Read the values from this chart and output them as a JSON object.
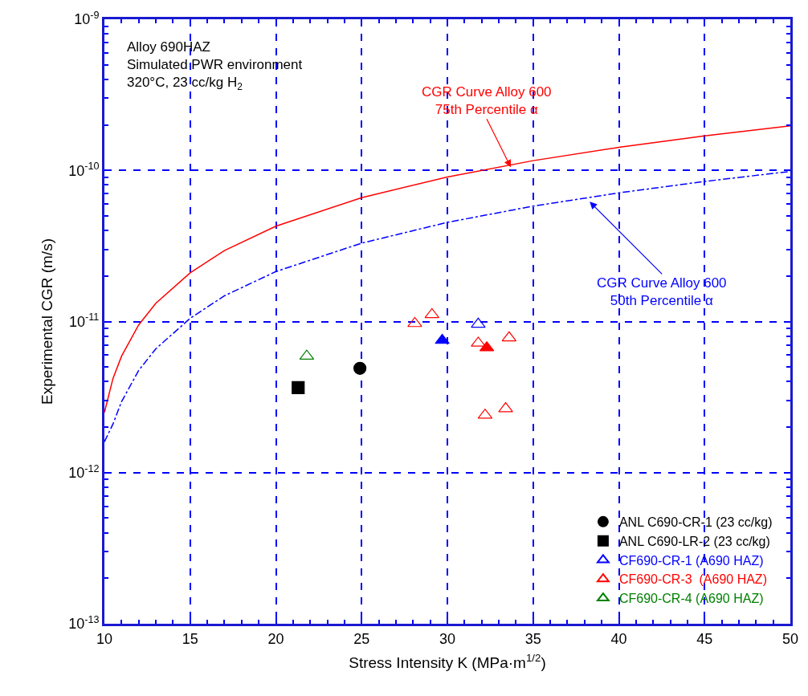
{
  "chart_data": {
    "type": "scatter",
    "xlabel": "Stress Intensity K (MPa·m$^{1/2}$)",
    "ylabel": "Experimental CGR (m/s)",
    "log": "y",
    "xlim": [
      10,
      50
    ],
    "xticks": [
      10,
      15,
      20,
      25,
      30,
      35,
      40,
      45,
      50
    ],
    "ylim": [
      1e-13,
      1e-09
    ],
    "yticks": [
      {
        "value": 1e-13,
        "label": "10$^{-13}$"
      },
      {
        "value": 1e-12,
        "label": "10$^{-12}$"
      },
      {
        "value": 1e-11,
        "label": "10$^{-11}$"
      },
      {
        "value": 1e-10,
        "label": "10$^{-10}$"
      },
      {
        "value": 1e-09,
        "label": "10$^{-9}$"
      }
    ],
    "grid": true,
    "legend": "bottom right",
    "series": [
      {
        "type": "line",
        "color": "#ff0000",
        "line_style": "solid",
        "marker": "none",
        "x": [
          10,
          10.5,
          11,
          12,
          13,
          15,
          17,
          20,
          25,
          30,
          35,
          40,
          45,
          50
        ],
        "values": [
          2.5e-12,
          4.2e-12,
          5.9e-12,
          9.5e-12,
          1.32e-11,
          2.1e-11,
          2.95e-11,
          4.27e-11,
          6.6e-11,
          9.05e-11,
          1.16e-10,
          1.42e-10,
          1.69e-10,
          1.97e-10
        ]
      },
      {
        "type": "line",
        "color": "#0000ff",
        "line_style": "dashdot",
        "marker": "none",
        "x": [
          10,
          10.5,
          11,
          12,
          13,
          15,
          17,
          20,
          25,
          30,
          35,
          40,
          45,
          50
        ],
        "values": [
          1.6e-12,
          2.1e-12,
          2.95e-12,
          4.75e-12,
          6.6e-12,
          1.05e-11,
          1.48e-11,
          2.14e-11,
          3.3e-11,
          4.53e-11,
          5.8e-11,
          7.1e-11,
          8.45e-11,
          9.85e-11
        ]
      },
      {
        "name": "ANL C690-CR-1 (23 cc/kg)",
        "color": "#000000",
        "marker": "circle",
        "x": [
          24.9
        ],
        "values": [
          4.9e-12
        ]
      },
      {
        "name": "ANL C690-LR-2 (23 cc/kg)",
        "color": "#000000",
        "marker": "square",
        "x": [
          21.3
        ],
        "values": [
          3.65e-12
        ]
      },
      {
        "name": "CF690-CR-1 (A690 HAZ)",
        "color": "#0000ff",
        "marker": "triangle-open",
        "x": [
          31.8
        ],
        "values": [
          9.6e-12
        ]
      },
      {
        "name": "CF690-CR-3  (A690 HAZ)",
        "color": "#ff0000",
        "marker": "triangle-open",
        "x": [
          28.1,
          29.1,
          31.8,
          33.6,
          32.2,
          33.4
        ],
        "values": [
          9.7e-12,
          1.11e-11,
          7.2e-12,
          7.8e-12,
          2.4e-12,
          2.65e-12
        ]
      },
      {
        "name": "CF690-CR-4 (A690 HAZ)",
        "color": "#008000",
        "marker": "triangle-open",
        "x": [
          21.8
        ],
        "values": [
          5.9e-12
        ]
      },
      {
        "color": "#0000ff",
        "marker": "triangle",
        "x": [
          29.7
        ],
        "values": [
          7.5e-12
        ]
      },
      {
        "color": "#ff0000",
        "marker": "triangle",
        "x": [
          32.3
        ],
        "values": [
          6.7e-12
        ]
      }
    ],
    "annotations": [
      "Alloy 690HAZ\nSimulated PWR environment\n320°C, 23 cc/kg H$_{2}$",
      {
        "text": "CGR Curve Alloy 600\n75th Percentile α",
        "x": 33.7,
        "y": 1.05e-10
      },
      {
        "text": "CGR Curve Alloy 600\n50th Percentile α",
        "x": 38.3,
        "y": 6.2e-11
      }
    ]
  }
}
